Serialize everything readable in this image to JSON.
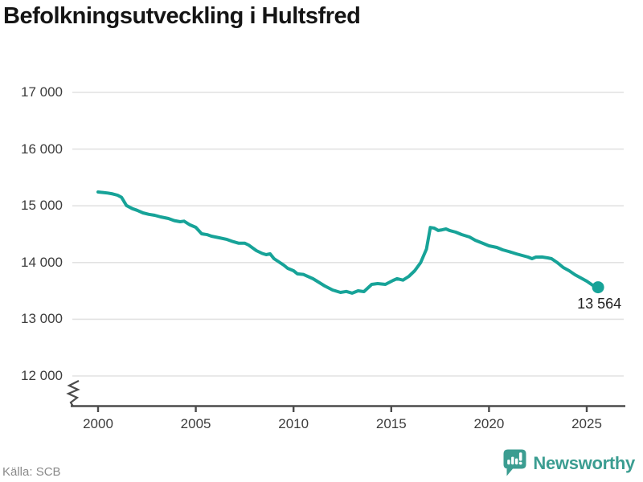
{
  "header": {
    "title": "Befolkningsutveckling i Hultsfred"
  },
  "footer": {
    "source": "Källa: SCB",
    "brand": "Newsworthy"
  },
  "colors": {
    "line": "#17a398",
    "brand": "#3b9d91",
    "gridline": "#e2e2e2",
    "axis": "#4c4c4c",
    "tick_text": "#3d3d3d"
  },
  "chart_data": {
    "type": "line",
    "title": "Befolkningsutveckling i Hultsfred",
    "xlabel": "",
    "ylabel": "",
    "grid": "horizontal",
    "axis_break": true,
    "ylim": [
      12000,
      17000
    ],
    "xlim": [
      2000,
      2025.7
    ],
    "y_axis": {
      "ticks": [
        17000,
        16000,
        15000,
        14000,
        13000,
        12000
      ],
      "labels": [
        "17 000",
        "16 000",
        "15 000",
        "14 000",
        "13 000",
        "12 000"
      ]
    },
    "x_axis": {
      "ticks": [
        2000,
        2005,
        2010,
        2015,
        2020,
        2025
      ],
      "labels": [
        "2000",
        "2005",
        "2010",
        "2015",
        "2020",
        "2025"
      ]
    },
    "series": [
      {
        "x": [
          2000.0,
          2000.25,
          2000.5,
          2000.75,
          2001.0,
          2001.2,
          2001.45,
          2001.75,
          2002.0,
          2002.3,
          2002.6,
          2002.9,
          2003.2,
          2003.6,
          2003.9,
          2004.2,
          2004.4,
          2004.7,
          2005.0,
          2005.3,
          2005.6,
          2005.8,
          2006.2,
          2006.6,
          2006.9,
          2007.2,
          2007.5,
          2007.7,
          2008.1,
          2008.4,
          2008.6,
          2008.8,
          2009.0,
          2009.5,
          2009.7,
          2010.0,
          2010.2,
          2010.5,
          2011.0,
          2011.2,
          2011.6,
          2012.0,
          2012.4,
          2012.7,
          2013.0,
          2013.3,
          2013.6,
          2014.0,
          2014.3,
          2014.7,
          2015.1,
          2015.3,
          2015.6,
          2015.9,
          2016.2,
          2016.5,
          2016.8,
          2017.0,
          2017.2,
          2017.4,
          2017.6,
          2017.8,
          2018.0,
          2018.3,
          2018.6,
          2019.0,
          2019.3,
          2019.7,
          2020.0,
          2020.4,
          2020.7,
          2021.0,
          2021.4,
          2021.7,
          2022.0,
          2022.2,
          2022.4,
          2022.7,
          2023.0,
          2023.2,
          2023.5,
          2023.8,
          2024.1,
          2024.4,
          2024.7,
          2025.0,
          2025.3,
          2025.58
        ],
        "values": [
          15243,
          15235,
          15225,
          15210,
          15187,
          15150,
          15005,
          14950,
          14920,
          14875,
          14850,
          14833,
          14805,
          14776,
          14740,
          14720,
          14730,
          14665,
          14620,
          14507,
          14490,
          14464,
          14436,
          14407,
          14370,
          14340,
          14342,
          14309,
          14210,
          14160,
          14139,
          14155,
          14068,
          13954,
          13898,
          13855,
          13800,
          13790,
          13714,
          13671,
          13586,
          13515,
          13473,
          13490,
          13460,
          13501,
          13487,
          13615,
          13629,
          13615,
          13686,
          13715,
          13690,
          13756,
          13855,
          13997,
          14238,
          14618,
          14606,
          14565,
          14577,
          14592,
          14563,
          14535,
          14493,
          14450,
          14393,
          14337,
          14294,
          14266,
          14224,
          14195,
          14153,
          14125,
          14096,
          14068,
          14096,
          14098,
          14082,
          14068,
          13997,
          13912,
          13855,
          13785,
          13728,
          13671,
          13600,
          13564
        ]
      }
    ],
    "annotation": {
      "value": 13564,
      "label": "13 564"
    }
  }
}
